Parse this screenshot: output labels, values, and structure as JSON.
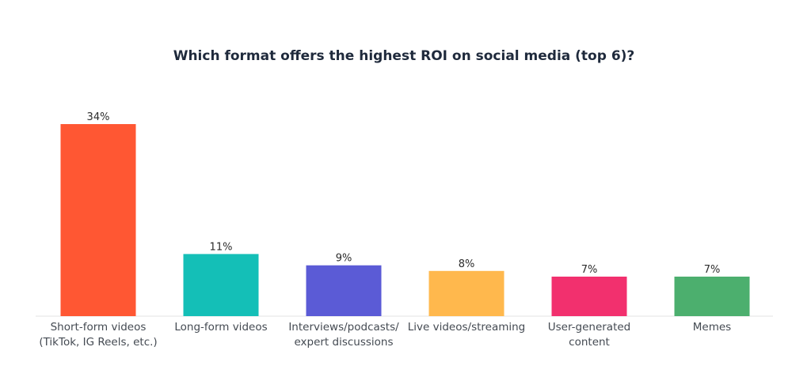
{
  "chart_data": {
    "type": "bar",
    "title": "Which format offers the highest ROI on social media (top 6)?",
    "xlabel": "",
    "ylabel": "",
    "ylim": [
      0,
      34
    ],
    "value_suffix": "%",
    "grid": false,
    "legend": "none",
    "categories": [
      [
        "Short-form videos",
        "(TikTok, IG Reels, etc.)"
      ],
      [
        "Long-form videos"
      ],
      [
        "Interviews/podcasts/",
        "expert discussions"
      ],
      [
        "Live videos/streaming"
      ],
      [
        "User-generated",
        "content"
      ],
      [
        "Memes"
      ]
    ],
    "values": [
      34,
      11,
      9,
      8,
      7,
      7
    ],
    "value_labels": [
      "34%",
      "11%",
      "9%",
      "8%",
      "7%",
      "7%"
    ],
    "colors": [
      "#ff5733",
      "#14bfb7",
      "#5b5bd6",
      "#ffb84d",
      "#f2306e",
      "#4caf6e"
    ]
  }
}
